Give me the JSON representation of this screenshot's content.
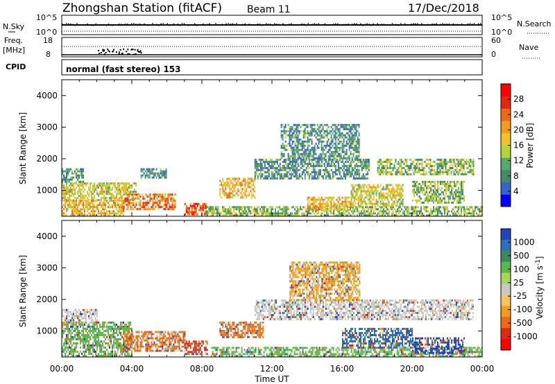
{
  "header": {
    "station": "Zhongshan Station (fitACF)",
    "beam": "Beam 11",
    "date": "17/Dec/2018"
  },
  "panels": {
    "nsky": {
      "left_label": "N.Sky",
      "right_label": "N.Search",
      "ticks_left": [
        "10^5",
        "10^0"
      ],
      "ticks_right": [
        "10^5",
        "10^0"
      ]
    },
    "freq": {
      "left_label_1": "Freq.",
      "left_label_2": "[MHz]",
      "right_label": "Nave",
      "ticks_left": [
        "18",
        "8"
      ],
      "ticks_right": [
        "60",
        "0"
      ]
    },
    "cpid": {
      "label": "CPID",
      "mode": "normal (fast stereo) 153"
    }
  },
  "colors": {
    "power": [
      "#0000ff",
      "#3366cc",
      "#448a66",
      "#56a96d",
      "#b0d63a",
      "#f2c22a",
      "#f39c1c",
      "#ef6a14",
      "#e02a10",
      "#ff0000"
    ],
    "velocity": [
      "#2244bb",
      "#2f6fba",
      "#3a8a5e",
      "#5bb84a",
      "#a6d75a",
      "#c8c8c8",
      "#f6c35a",
      "#f39c1c",
      "#ef6a14",
      "#e02a10",
      "#ff0000"
    ]
  },
  "chart_data": [
    {
      "type": "heatmap",
      "name": "power",
      "xlabel": "",
      "ylabel": "Slant Range [km]",
      "xlim": [
        0,
        24
      ],
      "ylim": [
        180,
        4500
      ],
      "yticks": [
        1000,
        2000,
        3000,
        4000
      ],
      "colorbar": {
        "label": "Power [dB]",
        "range": [
          0,
          32
        ],
        "ticks": [
          4,
          8,
          12,
          16,
          20,
          24,
          28
        ]
      },
      "regions": [
        {
          "t": [
            0,
            4.2
          ],
          "r": [
            700,
            1250
          ],
          "level": 16
        },
        {
          "t": [
            0,
            3.5
          ],
          "r": [
            200,
            700
          ],
          "level": 20
        },
        {
          "t": [
            3.5,
            6.5
          ],
          "r": [
            400,
            900
          ],
          "level": 24
        },
        {
          "t": [
            7.0,
            8.2
          ],
          "r": [
            250,
            600
          ],
          "level": 28
        },
        {
          "t": [
            0,
            1.2
          ],
          "r": [
            1300,
            1700
          ],
          "level": 8
        },
        {
          "t": [
            4.5,
            6.0
          ],
          "r": [
            1400,
            1700
          ],
          "level": 8
        },
        {
          "t": [
            8.2,
            24
          ],
          "r": [
            200,
            500
          ],
          "level": 12
        },
        {
          "t": [
            9.0,
            11.0
          ],
          "r": [
            800,
            1400
          ],
          "level": 20
        },
        {
          "t": [
            11.0,
            17.5
          ],
          "r": [
            1400,
            2000
          ],
          "level": 8
        },
        {
          "t": [
            12.5,
            17.0
          ],
          "r": [
            2000,
            3100
          ],
          "level": 8
        },
        {
          "t": [
            16.5,
            19.5
          ],
          "r": [
            500,
            1200
          ],
          "level": 16
        },
        {
          "t": [
            18.0,
            23.5
          ],
          "r": [
            1500,
            2000
          ],
          "level": 12
        },
        {
          "t": [
            20.0,
            23.0
          ],
          "r": [
            600,
            1300
          ],
          "level": 12
        },
        {
          "t": [
            14.0,
            16.5
          ],
          "r": [
            350,
            800
          ],
          "level": 20
        }
      ]
    },
    {
      "type": "heatmap",
      "name": "velocity",
      "xlabel": "Time UT",
      "ylabel": "Slant Range [km]",
      "xlim": [
        0,
        24
      ],
      "ylim": [
        180,
        4500
      ],
      "xticks": [
        "00:00",
        "04:00",
        "08:00",
        "12:00",
        "16:00",
        "20:00",
        "00:00"
      ],
      "yticks": [
        1000,
        2000,
        3000,
        4000
      ],
      "colorbar": {
        "label": "Velocity [m s^-1]",
        "ticks": [
          "1000",
          "500",
          "100",
          "25",
          "-25",
          "-100",
          "-500",
          "-1000"
        ]
      },
      "regions": [
        {
          "t": [
            0,
            4.0
          ],
          "r": [
            200,
            1300
          ],
          "level": 100
        },
        {
          "t": [
            3.5,
            7.0
          ],
          "r": [
            400,
            1000
          ],
          "level": -500
        },
        {
          "t": [
            7.0,
            8.3
          ],
          "r": [
            250,
            700
          ],
          "level": -1000
        },
        {
          "t": [
            0,
            2.0
          ],
          "r": [
            1300,
            1700
          ],
          "level": 25
        },
        {
          "t": [
            8.5,
            24
          ],
          "r": [
            200,
            500
          ],
          "level": 100
        },
        {
          "t": [
            11.0,
            23.5
          ],
          "r": [
            1400,
            2000
          ],
          "level": 25
        },
        {
          "t": [
            13.0,
            17.0
          ],
          "r": [
            2000,
            3200
          ],
          "level": -100
        },
        {
          "t": [
            9.0,
            11.5
          ],
          "r": [
            800,
            1300
          ],
          "level": -500
        },
        {
          "t": [
            16.0,
            20.0
          ],
          "r": [
            500,
            1100
          ],
          "level": 500
        },
        {
          "t": [
            20.0,
            23.0
          ],
          "r": [
            300,
            800
          ],
          "level": 1000
        }
      ]
    }
  ]
}
